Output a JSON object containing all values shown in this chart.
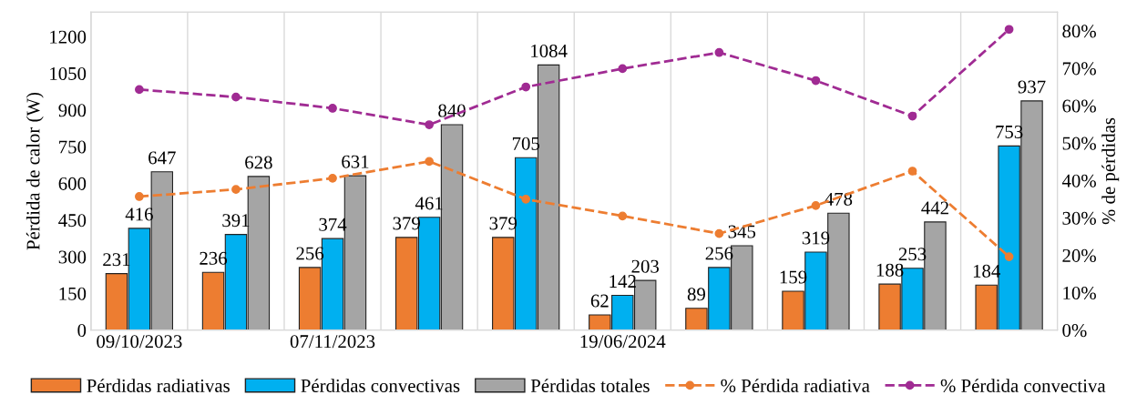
{
  "chart_data": {
    "type": "bar",
    "ylabel": "Pérdida de calor (W)",
    "y2label": "% de pérdidas",
    "categories": [
      "09/10/2023",
      null,
      "07/11/2023",
      null,
      null,
      "19/06/2024",
      null,
      null,
      null,
      null
    ],
    "series": [
      {
        "name": "Pérdidas radiativas",
        "color": "#ed7d31",
        "values": [
          231,
          236,
          256,
          379,
          379,
          62,
          89,
          159,
          188,
          184
        ],
        "value_labels": [
          "231",
          "236",
          "256",
          "379",
          "379",
          "62",
          "89",
          "159",
          "188",
          "184"
        ]
      },
      {
        "name": "Pérdidas convectivas",
        "color": "#00b0f0",
        "values": [
          416,
          391,
          374,
          461,
          705,
          142,
          256,
          319,
          253,
          753
        ],
        "value_labels": [
          "416",
          "391",
          "374",
          "461",
          "705",
          "142",
          "256",
          "319",
          "253",
          "753"
        ]
      },
      {
        "name": "Pérdidas totales",
        "color": "#a5a5a5",
        "values": [
          647,
          628,
          631,
          840,
          1084,
          203,
          345,
          478,
          442,
          937
        ],
        "value_labels": [
          "647",
          "628",
          "631",
          "840",
          "1084",
          "203",
          "345",
          "478",
          "442",
          "937"
        ]
      },
      {
        "name": "% Pérdida radiativa",
        "type": "line",
        "axis": "y2",
        "color": "#ed7d31",
        "marker": "circle",
        "line_style": "dashed",
        "values": [
          35.7,
          37.6,
          40.6,
          45.1,
          35.0,
          30.5,
          25.8,
          33.3,
          42.5,
          19.6
        ]
      },
      {
        "name": "% Pérdida convectiva",
        "type": "line",
        "axis": "y2",
        "color": "#a02b93",
        "marker": "circle",
        "line_style": "dashed",
        "values": [
          64.3,
          62.3,
          59.3,
          54.9,
          65.0,
          69.9,
          74.2,
          66.7,
          57.2,
          80.4
        ]
      }
    ],
    "ylim": [
      0,
      1300
    ],
    "yticks": [
      0,
      150,
      300,
      450,
      600,
      750,
      900,
      1050,
      1200
    ],
    "y2lim": [
      0,
      85
    ],
    "y2ticks": [
      {
        "value": 0,
        "label": "0%"
      },
      {
        "value": 10,
        "label": "10%"
      },
      {
        "value": 20,
        "label": "20%"
      },
      {
        "value": 30,
        "label": "30%"
      },
      {
        "value": 40,
        "label": "40%"
      },
      {
        "value": 50,
        "label": "50%"
      },
      {
        "value": 60,
        "label": "60%"
      },
      {
        "value": 70,
        "label": "70%"
      },
      {
        "value": 80,
        "label": "80%"
      }
    ],
    "grid": "x",
    "legend": "bottom"
  }
}
